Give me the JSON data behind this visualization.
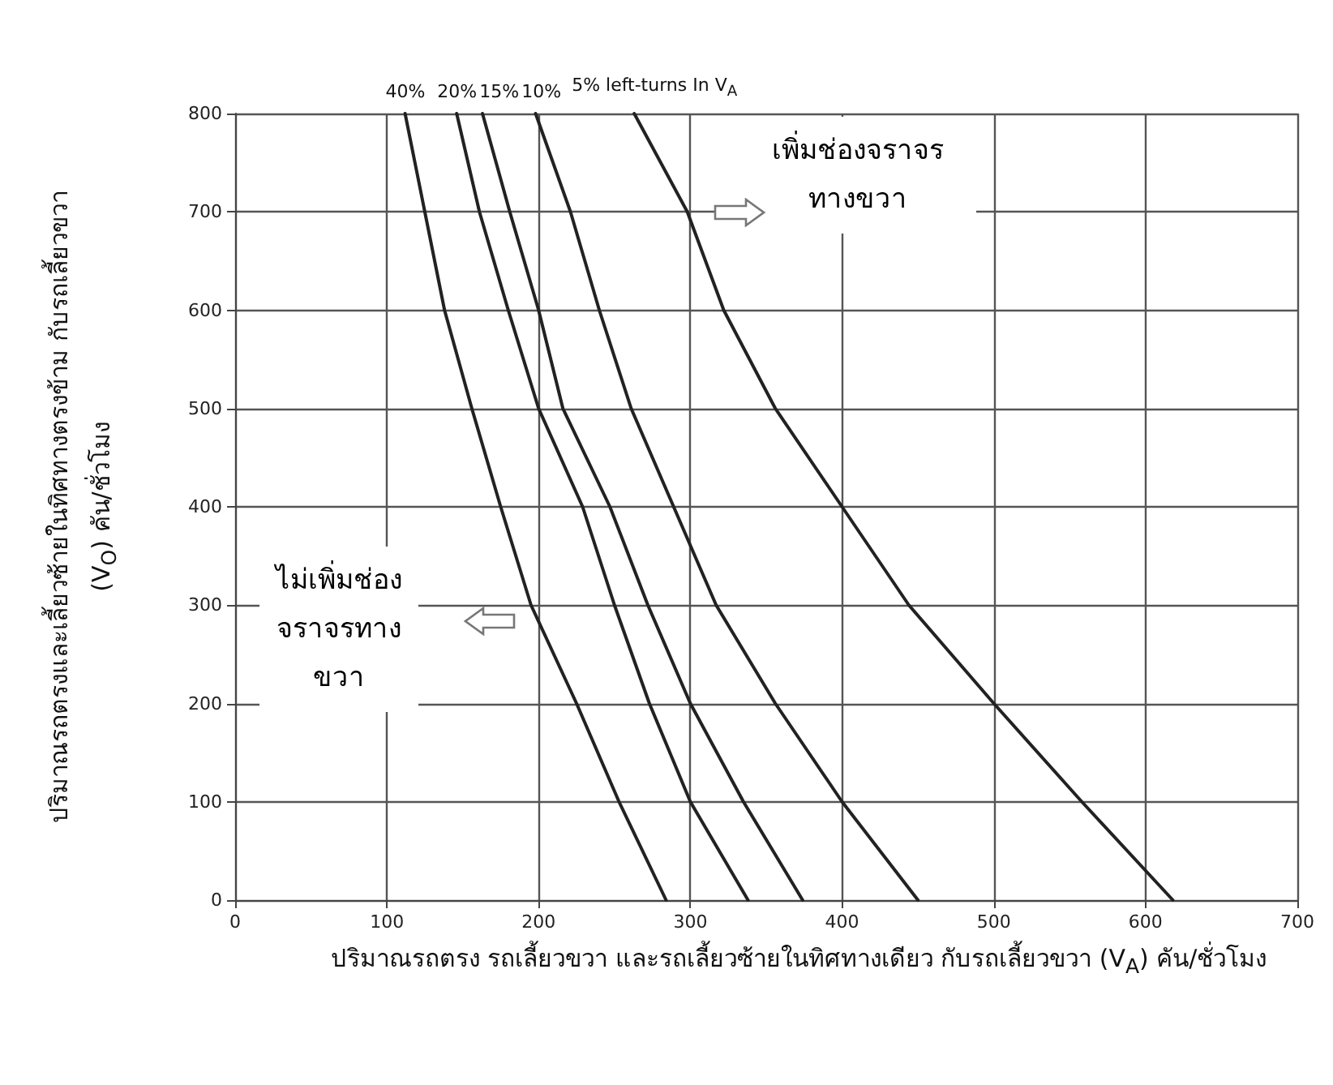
{
  "chart_data": {
    "type": "line",
    "xlabel": "ปริมาณรถตรง รถเลี้ยวขวา และรถเลี้ยวซ้ายในทิศทางเดียว กับรถเลี้ยวขวา (V$_{A}$) คัน/ชั่วโมง",
    "ylabel": "ปริมาณรถตรงและเลี้ยวซ้ายในทิศทางตรงข้าม กับรถเลี้ยวขวา (V$_{O}$) คัน/ชั่วโมง",
    "annotations": [
      "เพิ่มช่องจราจรทางขวา",
      "ไม่เพิ่มช่องจราจรทางขวา"
    ],
    "series": [
      {
        "name": "40%",
        "color": "#222222",
        "x": [
          112,
          125,
          138,
          156,
          175,
          195,
          225,
          253,
          284
        ],
        "values": [
          800,
          700,
          600,
          500,
          400,
          300,
          200,
          100,
          0
        ]
      },
      {
        "name": "20%",
        "color": "#222222",
        "x": [
          146,
          161,
          180,
          200,
          229,
          250,
          273,
          300,
          338
        ],
        "values": [
          800,
          700,
          600,
          500,
          400,
          300,
          200,
          100,
          0
        ]
      },
      {
        "name": "15%",
        "color": "#222222",
        "x": [
          163,
          181,
          200,
          216,
          247,
          272,
          300,
          335,
          374
        ],
        "values": [
          800,
          700,
          600,
          500,
          400,
          300,
          200,
          100,
          0
        ]
      },
      {
        "name": "10%",
        "color": "#222222",
        "x": [
          198,
          221,
          240,
          261,
          289,
          317,
          356,
          400,
          450
        ],
        "values": [
          800,
          700,
          600,
          500,
          400,
          300,
          200,
          100,
          0
        ]
      },
      {
        "name": "5% left-turns In V$_{A}$",
        "color": "#222222",
        "x": [
          263,
          298,
          322,
          356,
          400,
          444,
          500,
          558,
          618
        ],
        "values": [
          800,
          700,
          600,
          500,
          400,
          300,
          200,
          100,
          0
        ]
      }
    ],
    "xlim": [
      0,
      700
    ],
    "xticks": [
      0,
      100,
      200,
      300,
      400,
      500,
      600,
      700
    ],
    "ylim": [
      0,
      800
    ],
    "yticks": [
      0,
      100,
      200,
      300,
      400,
      500,
      600,
      700,
      800
    ],
    "grid": true,
    "marker": "none",
    "line_style": "solid"
  }
}
